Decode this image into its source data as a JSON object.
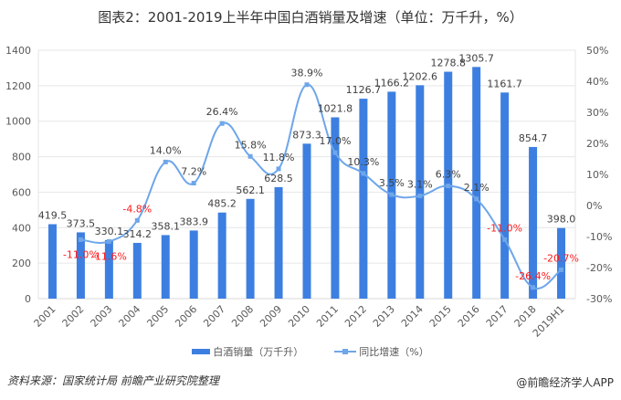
{
  "title": "图表2：2001-2019上半年中国白酒销量及增速（单位：万千升，%）",
  "legend": {
    "bar_label": "白酒销量（万千升）",
    "line_label": "同比增速（%）"
  },
  "footer": {
    "source": "资料来源：国家统计局 前瞻产业研究院整理",
    "credit": "@前瞻经济学人APP"
  },
  "colors": {
    "bar": "#3d7fe0",
    "line": "#6ea6ea",
    "negative_label": "#ff1a1a",
    "grid": "#e6e6e6"
  },
  "chart_data": {
    "type": "bar",
    "title": "图表2：2001-2019上半年中国白酒销量及增速（单位：万千升，%）",
    "xlabel": "",
    "categories": [
      "2001",
      "2002",
      "2003",
      "2004",
      "2005",
      "2006",
      "2007",
      "2008",
      "2009",
      "2010",
      "2011",
      "2012",
      "2013",
      "2014",
      "2015",
      "2016",
      "2017",
      "2018",
      "2019H1"
    ],
    "series": [
      {
        "name": "白酒销量（万千升）",
        "type": "bar",
        "axis": "left",
        "values": [
          419.5,
          373.5,
          330.1,
          314.2,
          358.1,
          383.9,
          485.2,
          562.1,
          628.5,
          873.3,
          1021.8,
          1126.7,
          1166.2,
          1202.6,
          1278.8,
          1305.7,
          1161.7,
          854.7,
          398.0
        ],
        "labels": [
          "419.5",
          "373.5",
          "330.1",
          "314.2",
          "358.1",
          "383.9",
          "485.2",
          "562.1",
          "628.5",
          "873.3",
          "1021.8",
          "1126.7",
          "1166.2",
          "1202.6",
          "1278.8",
          "1305.7",
          "1161.7",
          "854.7",
          "398.0"
        ]
      },
      {
        "name": "同比增速（%）",
        "type": "line",
        "axis": "right",
        "values": [
          null,
          -11.0,
          -11.6,
          -4.8,
          14.0,
          7.2,
          26.4,
          15.8,
          11.8,
          38.9,
          17.0,
          10.3,
          3.5,
          3.1,
          6.3,
          2.1,
          -11.0,
          -26.4,
          -20.7
        ],
        "labels": [
          "",
          "-11.0%",
          "-11.6%",
          "-4.8%",
          "14.0%",
          "7.2%",
          "26.4%",
          "15.8%",
          "11.8%",
          "38.9%",
          "17.0%",
          "10.3%",
          "3.5%",
          "3.1%",
          "6.3%",
          "2.1%",
          "-11.0%",
          "-26.4%",
          "-20.7%"
        ]
      }
    ],
    "y_left": {
      "min": 0,
      "max": 1400,
      "step": 200,
      "ticks": [
        "0",
        "200",
        "400",
        "600",
        "800",
        "1000",
        "1200",
        "1400"
      ]
    },
    "y_right": {
      "min": -30,
      "max": 50,
      "step": 10,
      "ticks": [
        "-30%",
        "-20%",
        "-10%",
        "0%",
        "10%",
        "20%",
        "30%",
        "40%",
        "50%"
      ]
    },
    "grid": true,
    "legend_position": "bottom"
  }
}
